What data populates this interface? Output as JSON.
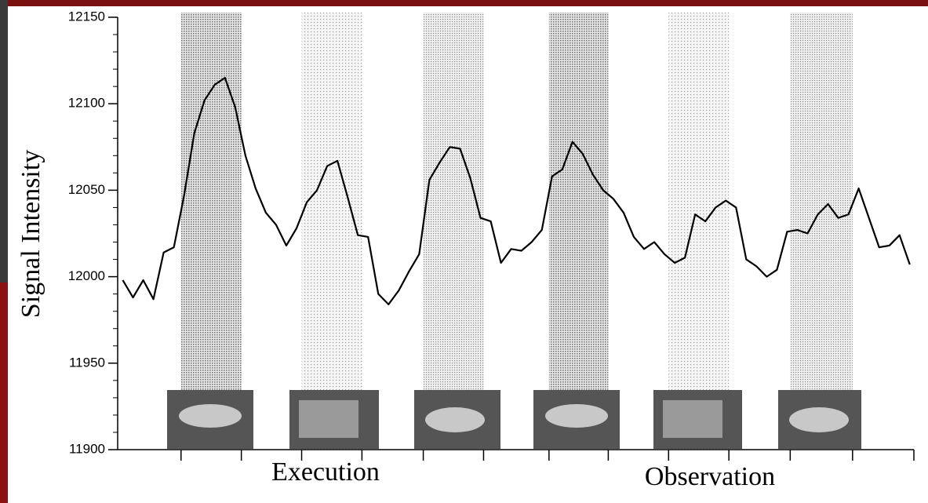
{
  "chart_data": {
    "type": "line",
    "y_label": "Signal Intensity",
    "annotations": [
      "Execution",
      "Observation"
    ],
    "x": [
      0,
      1,
      2,
      3,
      4,
      5,
      6,
      7,
      8,
      9,
      10,
      11,
      12,
      13,
      14,
      15,
      16,
      17,
      18,
      19,
      20,
      21,
      22,
      23,
      24,
      25,
      26,
      27,
      28,
      29,
      30,
      31,
      32,
      33,
      34,
      35,
      36,
      37,
      38,
      39,
      40,
      41,
      42,
      43,
      44,
      45,
      46,
      47,
      48,
      49,
      50,
      51,
      52,
      53,
      54,
      55,
      56,
      57,
      58,
      59,
      60,
      61,
      62,
      63,
      64,
      65,
      66,
      67,
      68,
      69,
      70,
      71,
      72,
      73,
      74,
      75,
      76,
      77
    ],
    "values": [
      11998,
      11988,
      11998,
      11987,
      12014,
      12017,
      12047,
      12083,
      12102,
      12111,
      12115,
      12098,
      12070,
      12051,
      12037,
      12030,
      12018,
      12028,
      12043,
      12050,
      12064,
      12067,
      12046,
      12024,
      12023,
      11990,
      11984,
      11992,
      12003,
      12013,
      12056,
      12066,
      12075,
      12074,
      12057,
      12034,
      12032,
      12008,
      12016,
      12015,
      12020,
      12027,
      12058,
      12062,
      12078,
      12071,
      12059,
      12050,
      12045,
      12037,
      12023,
      12016,
      12020,
      12013,
      12008,
      12011,
      12036,
      12032,
      12040,
      12044,
      12040,
      12010,
      12006,
      12000,
      12004,
      12026,
      12027,
      12025,
      12036,
      12042,
      12034,
      12036,
      12051,
      12034,
      12017,
      12018,
      12024,
      12007
    ],
    "color": "#000000",
    "blocks": [
      [
        5.7,
        11.6
      ],
      [
        17.5,
        23.4
      ],
      [
        29.4,
        35.3
      ],
      [
        41.7,
        47.5
      ],
      [
        53.4,
        59.3
      ],
      [
        65.3,
        71.4
      ]
    ],
    "xlim": [
      -0.5,
      77.4
    ],
    "ylim": [
      11900,
      12150
    ],
    "yticks": [
      11900,
      11950,
      12000,
      12050,
      12100,
      12150
    ]
  }
}
